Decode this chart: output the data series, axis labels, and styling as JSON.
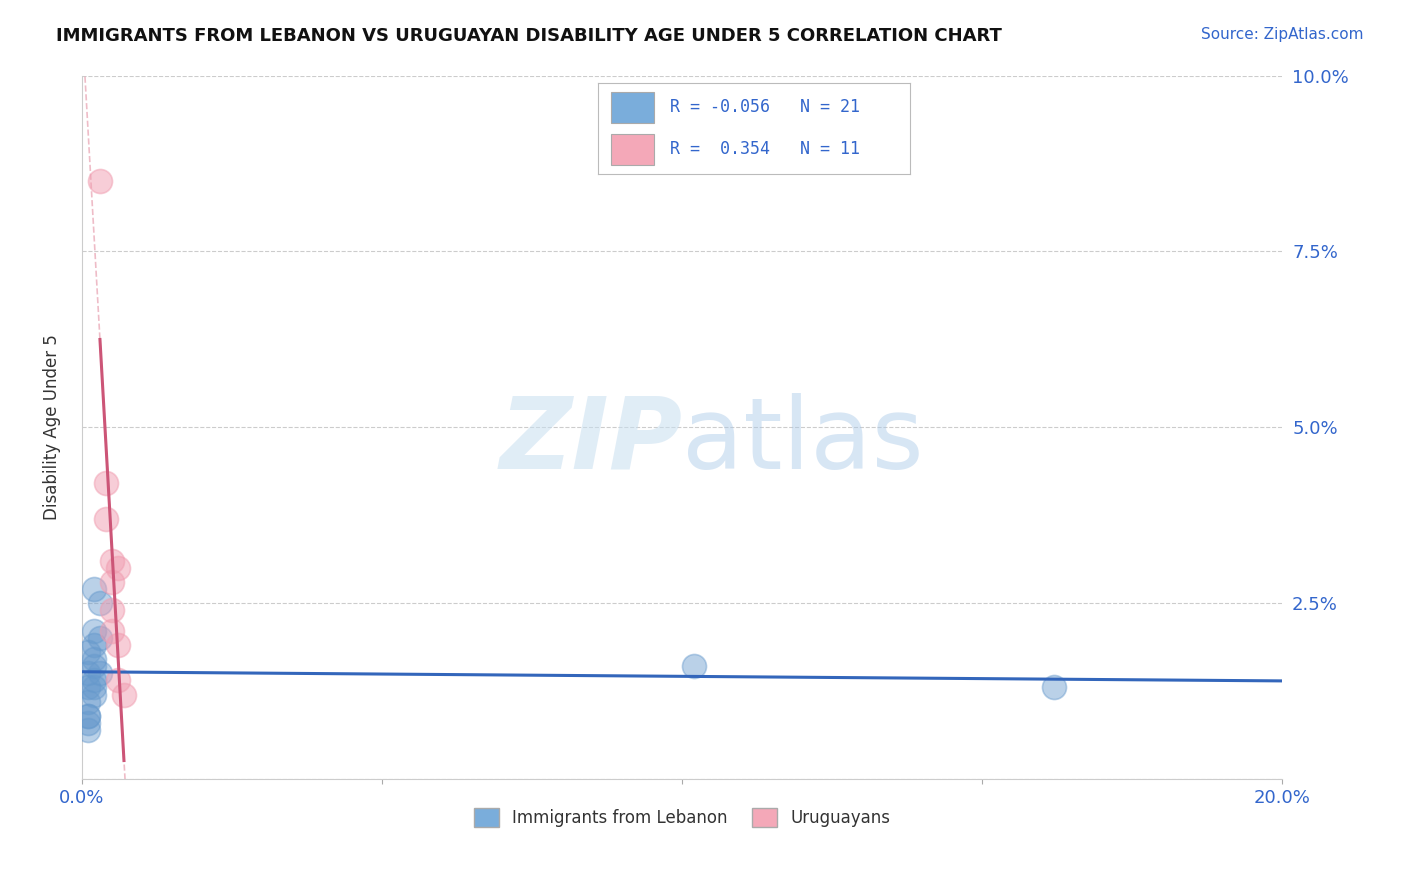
{
  "title": "IMMIGRANTS FROM LEBANON VS URUGUAYAN DISABILITY AGE UNDER 5 CORRELATION CHART",
  "source": "Source: ZipAtlas.com",
  "ylabel": "Disability Age Under 5",
  "xlim": [
    0.0,
    0.2
  ],
  "ylim": [
    0.0,
    0.1
  ],
  "xticks": [
    0.0,
    0.05,
    0.1,
    0.15,
    0.2
  ],
  "xtick_labels": [
    "0.0%",
    "",
    "",
    "",
    "20.0%"
  ],
  "yticks": [
    0.0,
    0.025,
    0.05,
    0.075,
    0.1
  ],
  "ytick_labels_right": [
    "",
    "2.5%",
    "5.0%",
    "7.5%",
    "10.0%"
  ],
  "blue_points": [
    [
      0.001,
      0.018
    ],
    [
      0.001,
      0.015
    ],
    [
      0.001,
      0.013
    ],
    [
      0.001,
      0.011
    ],
    [
      0.001,
      0.009
    ],
    [
      0.001,
      0.009
    ],
    [
      0.001,
      0.008
    ],
    [
      0.001,
      0.007
    ],
    [
      0.002,
      0.027
    ],
    [
      0.002,
      0.021
    ],
    [
      0.002,
      0.019
    ],
    [
      0.002,
      0.017
    ],
    [
      0.002,
      0.016
    ],
    [
      0.002,
      0.014
    ],
    [
      0.002,
      0.013
    ],
    [
      0.002,
      0.012
    ],
    [
      0.003,
      0.025
    ],
    [
      0.003,
      0.02
    ],
    [
      0.003,
      0.015
    ],
    [
      0.102,
      0.016
    ],
    [
      0.162,
      0.013
    ]
  ],
  "pink_points": [
    [
      0.003,
      0.085
    ],
    [
      0.004,
      0.042
    ],
    [
      0.004,
      0.037
    ],
    [
      0.005,
      0.031
    ],
    [
      0.005,
      0.028
    ],
    [
      0.005,
      0.024
    ],
    [
      0.005,
      0.021
    ],
    [
      0.006,
      0.03
    ],
    [
      0.006,
      0.019
    ],
    [
      0.006,
      0.014
    ],
    [
      0.007,
      0.012
    ]
  ],
  "blue_color": "#7aaddb",
  "pink_color": "#f4a8b8",
  "blue_scatter_color": "#6699cc",
  "pink_scatter_color": "#f09db0",
  "blue_line_color": "#3366bb",
  "pink_line_color": "#cc5577",
  "pink_dash_color": "#e8a0b0",
  "watermark_color": "#c8dff0",
  "background_color": "#ffffff",
  "grid_color": "#cccccc",
  "legend_r_blue": "-0.056",
  "legend_n_blue": "21",
  "legend_r_pink": " 0.354",
  "legend_n_pink": "11"
}
